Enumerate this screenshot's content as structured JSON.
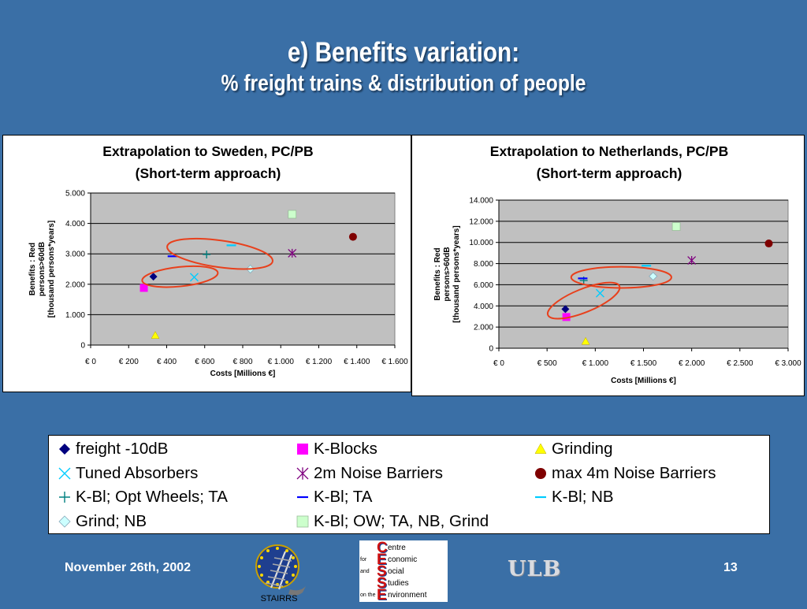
{
  "slide": {
    "title": "e) Benefits variation:",
    "subtitle": "% freight trains & distribution of people",
    "date": "November 26th, 2002",
    "page": "13",
    "logos": {
      "stairrs": "STAIRRS",
      "ulb": "ULB",
      "cesse": [
        {
          "big": "C",
          "rest": "entre",
          "pre": ""
        },
        {
          "big": "E",
          "rest": "conomic",
          "pre": "for"
        },
        {
          "big": "S",
          "rest": "ocial",
          "pre": "and"
        },
        {
          "big": "S",
          "rest": "tudies",
          "pre": ""
        },
        {
          "big": "E",
          "rest": "nvironment",
          "pre": "on the"
        }
      ]
    }
  },
  "colors": {
    "background": "#3a6fa6",
    "plot_area": "#c0c0c0",
    "ellipse": "#e8401c"
  },
  "legend": {
    "items": [
      {
        "label": "freight -10dB",
        "marker": "diamond",
        "color": "#00007f"
      },
      {
        "label": "K-Blocks",
        "marker": "square",
        "color": "#ff00ff"
      },
      {
        "label": "Grinding",
        "marker": "triangle",
        "color": "#ffff00"
      },
      {
        "label": "Tuned Absorbers",
        "marker": "x",
        "color": "#00ccff"
      },
      {
        "label": "2m Noise Barriers",
        "marker": "asterisk",
        "color": "#7f007f"
      },
      {
        "label": "max 4m Noise Barriers",
        "marker": "circle",
        "color": "#7f0000"
      },
      {
        "label": "K-Bl; Opt Wheels; TA",
        "marker": "plus",
        "color": "#008080"
      },
      {
        "label": "K-Bl; TA",
        "marker": "dash",
        "color": "#0000ff"
      },
      {
        "label": "K-Bl; NB",
        "marker": "dash",
        "color": "#00ccff"
      },
      {
        "label": "Grind; NB",
        "marker": "diamond",
        "color": "#ccffff"
      },
      {
        "label": "K-Bl; OW; TA, NB, Grind",
        "marker": "square",
        "color": "#ccffcc"
      }
    ]
  },
  "chart_data": [
    {
      "type": "scatter",
      "title": [
        "Extrapolation to Sweden, PC/PB",
        "(Short-term approach)"
      ],
      "xlabel": "Costs [Millions €]",
      "ylabel": [
        "Benefits : Red",
        "persons>60dB",
        "[thousand persons*years]"
      ],
      "xlim": [
        0,
        1600
      ],
      "ylim": [
        0,
        5000
      ],
      "xticks": [
        0,
        200,
        400,
        600,
        800,
        1000,
        1200,
        1400,
        1600
      ],
      "xtick_labels": [
        "€ 0",
        "€ 200",
        "€ 400",
        "€ 600",
        "€ 800",
        "€ 1.000",
        "€ 1.200",
        "€ 1.400",
        "€ 1.600"
      ],
      "yticks": [
        0,
        1000,
        2000,
        3000,
        4000,
        5000
      ],
      "ytick_labels": [
        "0",
        "1.000",
        "2.000",
        "3.000",
        "4.000",
        "5.000"
      ],
      "grid": true,
      "points": [
        {
          "series": "freight -10dB",
          "x": 330,
          "y": 2250
        },
        {
          "series": "K-Blocks",
          "x": 280,
          "y": 1880
        },
        {
          "series": "Grinding",
          "x": 340,
          "y": 320
        },
        {
          "series": "Tuned Absorbers",
          "x": 545,
          "y": 2230
        },
        {
          "series": "2m Noise Barriers",
          "x": 1060,
          "y": 3020
        },
        {
          "series": "max 4m Noise Barriers",
          "x": 1380,
          "y": 3560
        },
        {
          "series": "K-Bl; Opt Wheels; TA",
          "x": 610,
          "y": 2980
        },
        {
          "series": "K-Bl; TA",
          "x": 430,
          "y": 2920
        },
        {
          "series": "K-Bl; NB",
          "x": 740,
          "y": 3280
        },
        {
          "series": "Grind; NB",
          "x": 840,
          "y": 2500
        },
        {
          "series": "K-Bl; OW; TA, NB, Grind",
          "x": 1060,
          "y": 4300
        }
      ],
      "ellipses": [
        {
          "cx": 470,
          "cy": 2250,
          "rx": 200,
          "ry": 320,
          "angle": -6
        },
        {
          "cx": 680,
          "cy": 3000,
          "rx": 280,
          "ry": 440,
          "angle": 8
        }
      ]
    },
    {
      "type": "scatter",
      "title": [
        "Extrapolation to Netherlands, PC/PB",
        "(Short-term approach)"
      ],
      "xlabel": "Costs [Millions €]",
      "ylabel": [
        "Benefits : Red",
        "persons>60dB",
        "[thousand persons*years]"
      ],
      "xlim": [
        0,
        3000
      ],
      "ylim": [
        0,
        14000
      ],
      "xticks": [
        0,
        500,
        1000,
        1500,
        2000,
        2500,
        3000
      ],
      "xtick_labels": [
        "€ 0",
        "€ 500",
        "€ 1.000",
        "€ 1.500",
        "€ 2.000",
        "€ 2.500",
        "€ 3.000"
      ],
      "yticks": [
        0,
        2000,
        4000,
        6000,
        8000,
        10000,
        12000,
        14000
      ],
      "ytick_labels": [
        "0",
        "2.000",
        "4.000",
        "6.000",
        "8.000",
        "10.000",
        "12.000",
        "14.000"
      ],
      "grid": true,
      "points": [
        {
          "series": "freight -10dB",
          "x": 690,
          "y": 3700
        },
        {
          "series": "K-Blocks",
          "x": 700,
          "y": 2950
        },
        {
          "series": "Grinding",
          "x": 900,
          "y": 650
        },
        {
          "series": "Tuned Absorbers",
          "x": 1050,
          "y": 5200
        },
        {
          "series": "2m Noise Barriers",
          "x": 2000,
          "y": 8300
        },
        {
          "series": "max 4m Noise Barriers",
          "x": 2800,
          "y": 9900
        },
        {
          "series": "K-Bl; Opt Wheels; TA",
          "x": 880,
          "y": 6400
        },
        {
          "series": "K-Bl; TA",
          "x": 870,
          "y": 6600
        },
        {
          "series": "K-Bl; NB",
          "x": 1530,
          "y": 7800
        },
        {
          "series": "Grind; NB",
          "x": 1600,
          "y": 6800
        },
        {
          "series": "K-Bl; OW; TA, NB, Grind",
          "x": 1840,
          "y": 11500
        }
      ],
      "ellipses": [
        {
          "cx": 880,
          "cy": 4500,
          "rx": 400,
          "ry": 1100,
          "angle": -22
        },
        {
          "cx": 1270,
          "cy": 6700,
          "rx": 520,
          "ry": 1000,
          "angle": 0
        }
      ]
    }
  ]
}
